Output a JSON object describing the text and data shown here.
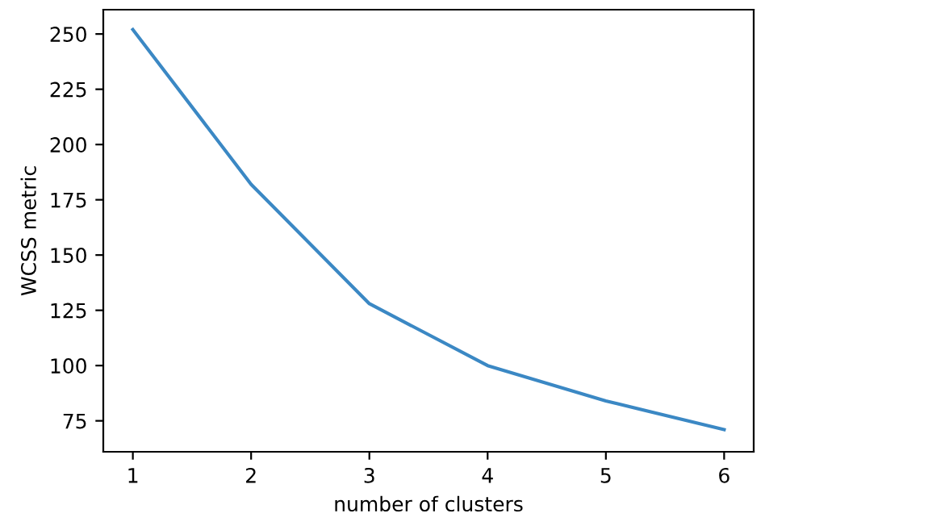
{
  "chart_data": {
    "type": "line",
    "xlabel": "number of clusters",
    "ylabel": "WCSS metric",
    "x": [
      1,
      2,
      3,
      4,
      5,
      6
    ],
    "series": [
      {
        "color": "#3b88c4",
        "values": [
          252,
          182,
          128,
          100,
          84,
          71
        ]
      }
    ],
    "xlim": [
      0.75,
      6.25
    ],
    "ylim": [
      61,
      261
    ],
    "xticks": [
      1,
      2,
      3,
      4,
      5,
      6
    ],
    "yticks": [
      75,
      100,
      125,
      150,
      175,
      200,
      225,
      250
    ],
    "grid": false,
    "marker": "none",
    "line_style": "solid"
  }
}
